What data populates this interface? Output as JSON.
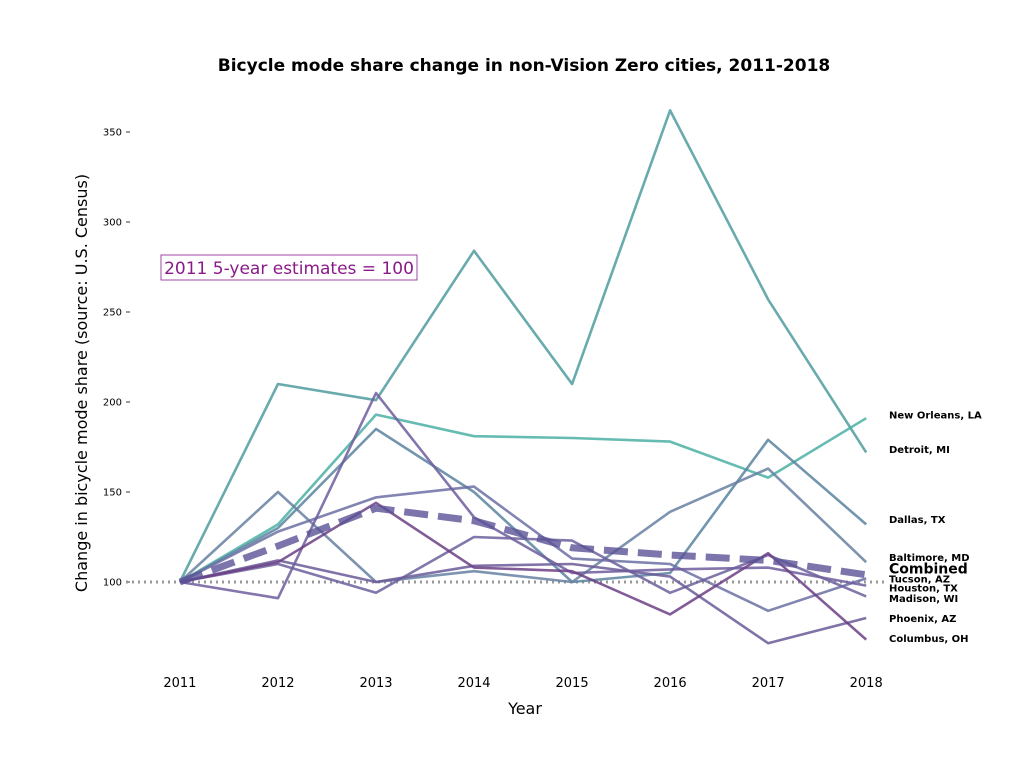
{
  "chart_data": {
    "type": "line",
    "title": "Bicycle mode share change in non-Vision Zero cities, 2011-2018",
    "xlabel": "Year",
    "ylabel": "Change in bicycle mode share (source: U.S. Census)",
    "x": [
      2011,
      2012,
      2013,
      2014,
      2015,
      2016,
      2017,
      2018
    ],
    "xlim": [
      2010.45,
      2018.6
    ],
    "ylim": [
      50,
      370
    ],
    "yticks": [
      100,
      150,
      200,
      250,
      300,
      350
    ],
    "xtick_labels": [
      "2011",
      "2012",
      "2013",
      "2014",
      "2015",
      "2016",
      "2017",
      "2018"
    ],
    "ytick_labels": [
      "100",
      "150",
      "200",
      "250",
      "300",
      "350"
    ],
    "annotation": {
      "text": "2011 5-year estimates = 100",
      "color": "#8b1a89"
    },
    "baseline": {
      "value": 100,
      "color": "#999999"
    },
    "series": [
      {
        "name": "Detroit, MI",
        "values": [
          100,
          210,
          201,
          284,
          210,
          362,
          257,
          172
        ],
        "color": "#4f9c9f"
      },
      {
        "name": "New Orleans, LA",
        "values": [
          100,
          132,
          193,
          181,
          180,
          178,
          158,
          191
        ],
        "color": "#4bb0a4"
      },
      {
        "name": "Dallas, TX",
        "values": [
          100,
          130,
          185,
          150,
          100,
          105,
          179,
          132
        ],
        "color": "#5b84a0"
      },
      {
        "name": "Baltimore, MD",
        "values": [
          100,
          150,
          100,
          106,
          100,
          139,
          163,
          111
        ],
        "color": "#6680a2"
      },
      {
        "name": "Tucson, AZ",
        "values": [
          100,
          128,
          147,
          153,
          113,
          110,
          84,
          102
        ],
        "color": "#6c6ea4"
      },
      {
        "name": "Houston, TX",
        "values": [
          100,
          91,
          205,
          136,
          105,
          107,
          108,
          98
        ],
        "color": "#6e5d9d"
      },
      {
        "name": "Madison, WI",
        "values": [
          100,
          110,
          94,
          125,
          123,
          94,
          115,
          92
        ],
        "color": "#6c609c"
      },
      {
        "name": "Phoenix, AZ",
        "values": [
          100,
          112,
          100,
          109,
          110,
          103,
          66,
          80
        ],
        "color": "#6b5a98"
      },
      {
        "name": "Columbus, OH",
        "values": [
          100,
          111,
          144,
          108,
          106,
          82,
          116,
          68
        ],
        "color": "#6b3f85"
      },
      {
        "name": "Combined",
        "values": [
          100,
          120,
          141,
          134,
          119,
          115,
          112,
          104
        ],
        "color": "#5a5296",
        "dashed": true
      }
    ],
    "label_positions_y": {
      "New Orleans, LA": 193,
      "Detroit, MI": 174,
      "Dallas, TX": 135,
      "Baltimore, MD": 114,
      "Combined": 107,
      "Tucson, AZ": 102,
      "Houston, TX": 97,
      "Madison, WI": 91,
      "Phoenix, AZ": 80,
      "Columbus, OH": 69
    }
  }
}
